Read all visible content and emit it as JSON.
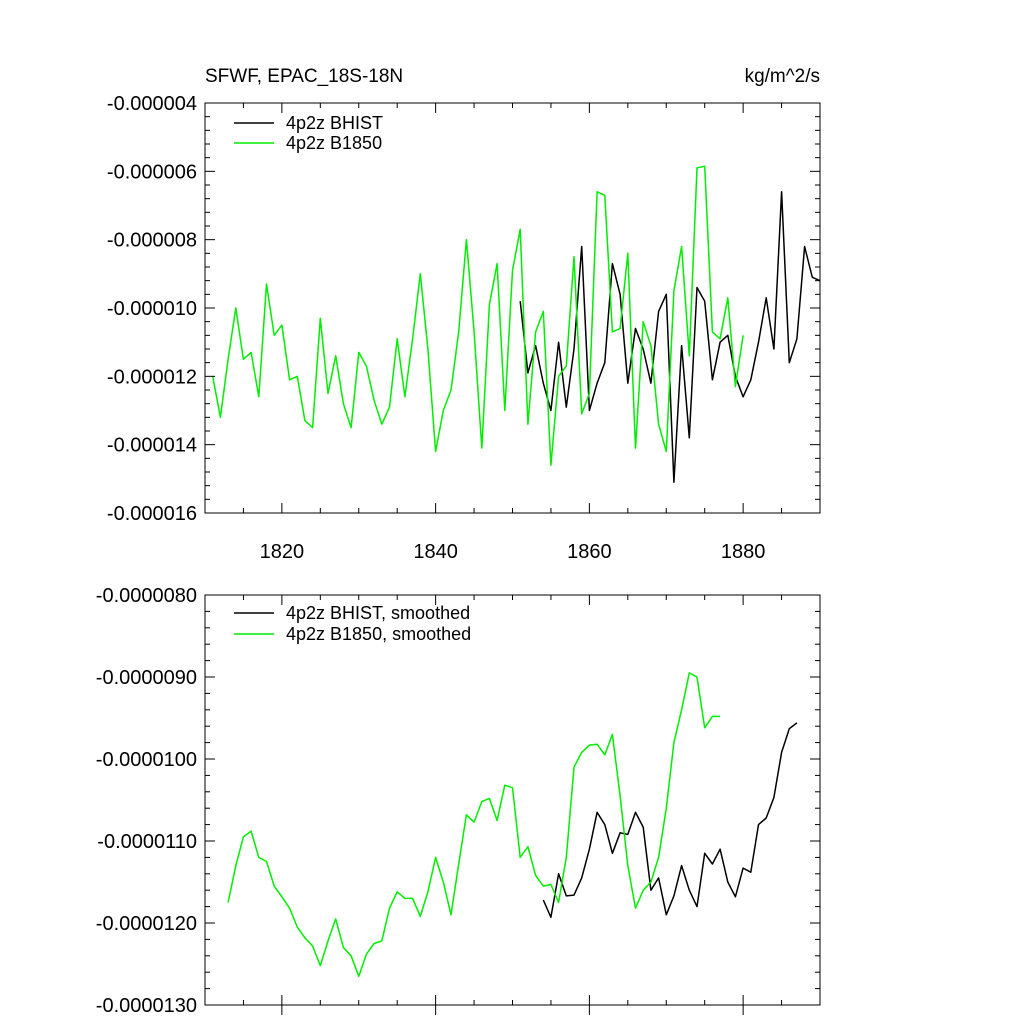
{
  "figure": {
    "title": "SFWF, EPAC_18S-18N",
    "units": "kg/m^2/s"
  },
  "colors": {
    "bhist": "#000000",
    "b1850": "#00ee00",
    "axis": "#000000"
  },
  "chart_data": [
    {
      "type": "line",
      "name": "annual",
      "title": "SFWF, EPAC_18S-18N",
      "units": "kg/m^2/s",
      "xlabel": "",
      "ylabel": "",
      "xlim": [
        1810,
        1890
      ],
      "ylim": [
        -1.6e-05,
        -4e-06
      ],
      "grid": false,
      "legend": "top-left",
      "xtick_labels": [
        {
          "value": 1820,
          "label": "1820"
        },
        {
          "value": 1840,
          "label": "1840"
        },
        {
          "value": 1860,
          "label": "1860"
        },
        {
          "value": 1880,
          "label": "1880"
        }
      ],
      "ytick_labels": [
        {
          "value": -4e-06,
          "label": "-0.000004"
        },
        {
          "value": -6e-06,
          "label": "-0.000006"
        },
        {
          "value": -8e-06,
          "label": "-0.000008"
        },
        {
          "value": -1e-05,
          "label": "-0.000010"
        },
        {
          "value": -1.2e-05,
          "label": "-0.000012"
        },
        {
          "value": -1.4e-05,
          "label": "-0.000014"
        },
        {
          "value": -1.6e-05,
          "label": "-0.000016"
        }
      ],
      "series": [
        {
          "name": "4p2z BHIST",
          "color": "#000000",
          "x": [
            1851,
            1852,
            1853,
            1854,
            1855,
            1856,
            1857,
            1858,
            1859,
            1860,
            1861,
            1862,
            1863,
            1864,
            1865,
            1866,
            1867,
            1868,
            1869,
            1870,
            1871,
            1872,
            1873,
            1874,
            1875,
            1876,
            1877,
            1878,
            1879,
            1880,
            1881,
            1882,
            1883,
            1884,
            1885,
            1886,
            1887,
            1888,
            1889,
            1890
          ],
          "y": [
            -9.8e-06,
            -1.19e-05,
            -1.11e-05,
            -1.22e-05,
            -1.3e-05,
            -1.1e-05,
            -1.29e-05,
            -1.12e-05,
            -8.2e-06,
            -1.3e-05,
            -1.22e-05,
            -1.16e-05,
            -8.7e-06,
            -9.6e-06,
            -1.22e-05,
            -1.06e-05,
            -1.12e-05,
            -1.22e-05,
            -1.01e-05,
            -9.6e-06,
            -1.51e-05,
            -1.11e-05,
            -1.38e-05,
            -9.4e-06,
            -9.8e-06,
            -1.21e-05,
            -1.1e-05,
            -1.08e-05,
            -1.2e-05,
            -1.26e-05,
            -1.21e-05,
            -1.1e-05,
            -9.7e-06,
            -1.12e-05,
            -6.6e-06,
            -1.16e-05,
            -1.09e-05,
            -8.2e-06,
            -9.1e-06,
            -9.2e-06
          ]
        },
        {
          "name": "4p2z B1850",
          "color": "#00ee00",
          "x": [
            1811,
            1812,
            1813,
            1814,
            1815,
            1816,
            1817,
            1818,
            1819,
            1820,
            1821,
            1822,
            1823,
            1824,
            1825,
            1826,
            1827,
            1828,
            1829,
            1830,
            1831,
            1832,
            1833,
            1834,
            1835,
            1836,
            1837,
            1838,
            1839,
            1840,
            1841,
            1842,
            1843,
            1844,
            1845,
            1846,
            1847,
            1848,
            1849,
            1850,
            1851,
            1852,
            1853,
            1854,
            1855,
            1856,
            1857,
            1858,
            1859,
            1860,
            1861,
            1862,
            1863,
            1864,
            1865,
            1866,
            1867,
            1868,
            1869,
            1870,
            1871,
            1872,
            1873,
            1874,
            1875,
            1876,
            1877,
            1878,
            1879,
            1880
          ],
          "y": [
            -1.2e-05,
            -1.32e-05,
            -1.15e-05,
            -1e-05,
            -1.15e-05,
            -1.13e-05,
            -1.26e-05,
            -9.3e-06,
            -1.08e-05,
            -1.05e-05,
            -1.21e-05,
            -1.2e-05,
            -1.33e-05,
            -1.35e-05,
            -1.03e-05,
            -1.25e-05,
            -1.14e-05,
            -1.28e-05,
            -1.35e-05,
            -1.13e-05,
            -1.17e-05,
            -1.27e-05,
            -1.34e-05,
            -1.29e-05,
            -1.09e-05,
            -1.26e-05,
            -1.09e-05,
            -9e-06,
            -1.12e-05,
            -1.42e-05,
            -1.3e-05,
            -1.24e-05,
            -1.07e-05,
            -8e-06,
            -1.07e-05,
            -1.41e-05,
            -9.9e-06,
            -8.7e-06,
            -1.3e-05,
            -8.9e-06,
            -7.7e-06,
            -1.34e-05,
            -1.07e-05,
            -1.01e-05,
            -1.46e-05,
            -1.2e-05,
            -1.17e-05,
            -8.5e-06,
            -1.31e-05,
            -1.25e-05,
            -6.6e-06,
            -6.7e-06,
            -1.07e-05,
            -1.06e-05,
            -8.4e-06,
            -1.41e-05,
            -1.04e-05,
            -1.11e-05,
            -1.34e-05,
            -1.42e-05,
            -9.5e-06,
            -8.2e-06,
            -1.14e-05,
            -5.9e-06,
            -5.85e-06,
            -1.07e-05,
            -1.09e-05,
            -9.7e-06,
            -1.23e-05,
            -1.08e-05
          ]
        }
      ]
    },
    {
      "type": "line",
      "name": "smoothed",
      "title": "",
      "xlabel": "",
      "ylabel": "",
      "xlim": [
        1810,
        1890
      ],
      "ylim": [
        -1.3e-05,
        -8e-06
      ],
      "grid": false,
      "legend": "top-left",
      "xtick_labels": [],
      "ytick_labels": [
        {
          "value": -8e-06,
          "label": "-0.0000080"
        },
        {
          "value": -9e-06,
          "label": "-0.0000090"
        },
        {
          "value": -1e-05,
          "label": "-0.0000100"
        },
        {
          "value": -1.1e-05,
          "label": "-0.0000110"
        },
        {
          "value": -1.2e-05,
          "label": "-0.0000120"
        },
        {
          "value": -1.3e-05,
          "label": "-0.0000130"
        }
      ],
      "series": [
        {
          "name": "4p2z BHIST, smoothed",
          "color": "#000000",
          "x": [
            1854,
            1855,
            1856,
            1857,
            1858,
            1859,
            1860,
            1861,
            1862,
            1863,
            1864,
            1865,
            1866,
            1867,
            1868,
            1869,
            1870,
            1871,
            1872,
            1873,
            1874,
            1875,
            1876,
            1877,
            1878,
            1879,
            1880,
            1881,
            1882,
            1883,
            1884,
            1885,
            1886,
            1887
          ],
          "y": [
            -1.172e-05,
            -1.193e-05,
            -1.14e-05,
            -1.167e-05,
            -1.166e-05,
            -1.145e-05,
            -1.11e-05,
            -1.065e-05,
            -1.08e-05,
            -1.115e-05,
            -1.09e-05,
            -1.092e-05,
            -1.065e-05,
            -1.083e-05,
            -1.16e-05,
            -1.145e-05,
            -1.19e-05,
            -1.167e-05,
            -1.13e-05,
            -1.16e-05,
            -1.18e-05,
            -1.115e-05,
            -1.128e-05,
            -1.11e-05,
            -1.15e-05,
            -1.168e-05,
            -1.133e-05,
            -1.138e-05,
            -1.08e-05,
            -1.072e-05,
            -1.047e-05,
            -9.92e-06,
            -9.63e-06,
            -9.56e-06
          ]
        },
        {
          "name": "4p2z B1850, smoothed",
          "color": "#00ee00",
          "x": [
            1813,
            1814,
            1815,
            1816,
            1817,
            1818,
            1819,
            1820,
            1821,
            1822,
            1823,
            1824,
            1825,
            1826,
            1827,
            1828,
            1829,
            1830,
            1831,
            1832,
            1833,
            1834,
            1835,
            1836,
            1837,
            1838,
            1839,
            1840,
            1841,
            1842,
            1843,
            1844,
            1845,
            1846,
            1847,
            1848,
            1849,
            1850,
            1851,
            1852,
            1853,
            1854,
            1855,
            1856,
            1857,
            1858,
            1859,
            1860,
            1861,
            1862,
            1863,
            1864,
            1865,
            1866,
            1867,
            1868,
            1869,
            1870,
            1871,
            1872,
            1873,
            1874,
            1875,
            1876,
            1877
          ],
          "y": [
            -1.175e-05,
            -1.13e-05,
            -1.095e-05,
            -1.088e-05,
            -1.12e-05,
            -1.125e-05,
            -1.155e-05,
            -1.168e-05,
            -1.182e-05,
            -1.205e-05,
            -1.218e-05,
            -1.228e-05,
            -1.252e-05,
            -1.222e-05,
            -1.195e-05,
            -1.23e-05,
            -1.24e-05,
            -1.265e-05,
            -1.238e-05,
            -1.225e-05,
            -1.222e-05,
            -1.182e-05,
            -1.162e-05,
            -1.17e-05,
            -1.17e-05,
            -1.192e-05,
            -1.162e-05,
            -1.12e-05,
            -1.15e-05,
            -1.19e-05,
            -1.128e-05,
            -1.068e-05,
            -1.077e-05,
            -1.052e-05,
            -1.048e-05,
            -1.075e-05,
            -1.032e-05,
            -1.035e-05,
            -1.12e-05,
            -1.107e-05,
            -1.142e-05,
            -1.155e-05,
            -1.153e-05,
            -1.175e-05,
            -1.12e-05,
            -1.01e-05,
            -9.92e-06,
            -9.83e-06,
            -9.82e-06,
            -9.95e-06,
            -9.7e-06,
            -1.045e-05,
            -1.13e-05,
            -1.182e-05,
            -1.16e-05,
            -1.15e-05,
            -1.12e-05,
            -1.06e-05,
            -9.8e-06,
            -9.4e-06,
            -8.95e-06,
            -9e-06,
            -9.62e-06,
            -9.48e-06,
            -9.48e-06
          ]
        }
      ]
    }
  ]
}
